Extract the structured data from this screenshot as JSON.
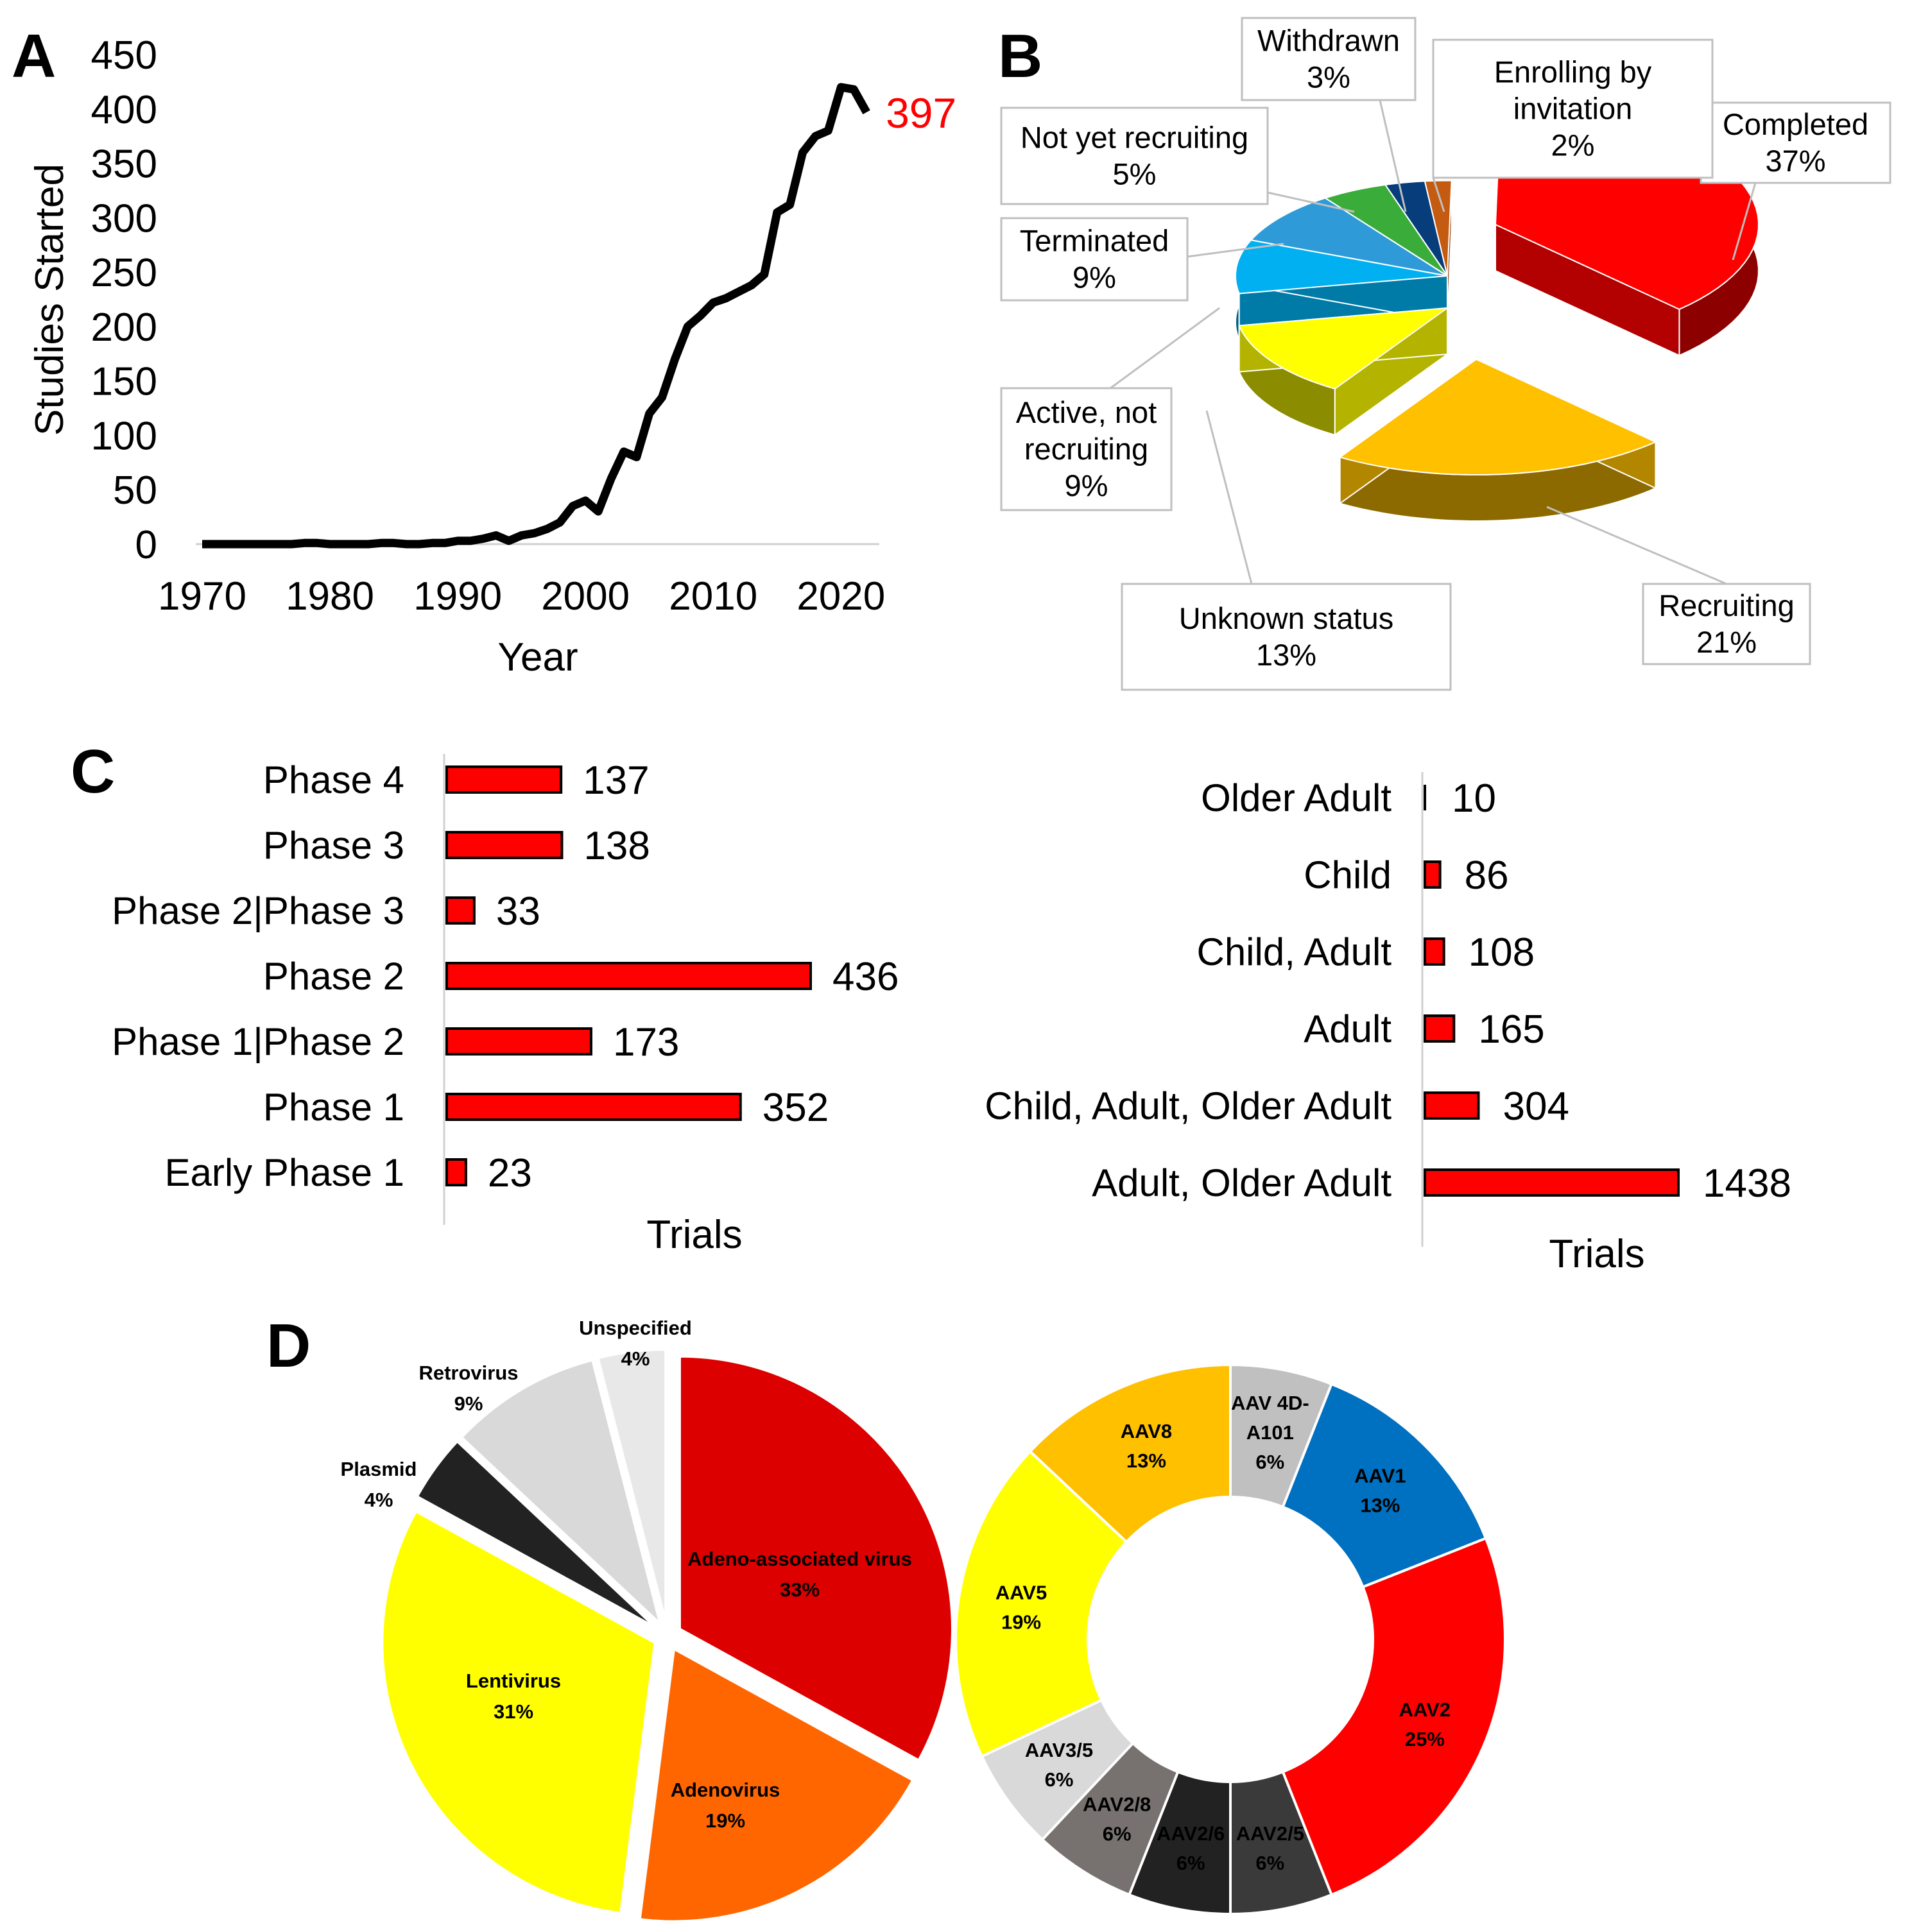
{
  "panels": {
    "A": "A",
    "B": "B",
    "C": "C",
    "D": "D"
  },
  "chart_data": [
    {
      "id": "A",
      "type": "line",
      "xlabel": "Year",
      "ylabel": "Studies Started",
      "xlim": [
        1970,
        2023
      ],
      "ylim": [
        0,
        450
      ],
      "xticks": [
        1970,
        1980,
        1990,
        2000,
        2010,
        2020
      ],
      "yticks": [
        0,
        50,
        100,
        150,
        200,
        250,
        300,
        350,
        400,
        450
      ],
      "annotation": "397",
      "annotation_color": "#ff0000",
      "line_color": "#000000",
      "x": [
        1970,
        1971,
        1972,
        1973,
        1974,
        1975,
        1976,
        1977,
        1978,
        1979,
        1980,
        1981,
        1982,
        1983,
        1984,
        1985,
        1986,
        1987,
        1988,
        1989,
        1990,
        1991,
        1992,
        1993,
        1994,
        1995,
        1996,
        1997,
        1998,
        1999,
        2000,
        2001,
        2002,
        2003,
        2004,
        2005,
        2006,
        2007,
        2008,
        2009,
        2010,
        2011,
        2012,
        2013,
        2014,
        2015,
        2016,
        2017,
        2018,
        2019,
        2020,
        2021,
        2022
      ],
      "y": [
        0,
        0,
        0,
        0,
        0,
        0,
        0,
        0,
        1,
        1,
        0,
        0,
        0,
        0,
        1,
        1,
        0,
        0,
        1,
        1,
        3,
        3,
        5,
        8,
        3,
        8,
        10,
        14,
        20,
        35,
        40,
        30,
        60,
        85,
        80,
        120,
        135,
        170,
        200,
        210,
        222,
        226,
        232,
        238,
        248,
        305,
        312,
        360,
        375,
        380,
        420,
        418,
        397
      ]
    },
    {
      "id": "B",
      "type": "pie",
      "style": "3d-exploded",
      "categories": [
        "Completed",
        "Recruiting",
        "Unknown status",
        "Active, not recruiting",
        "Terminated",
        "Not yet recruiting",
        "Withdrawn",
        "Enrolling by invitation"
      ],
      "labels": [
        "Completed\n37%",
        "Recruiting\n21%",
        "Unknown status\n13%",
        "Active, not\nrecruiting\n9%",
        "Terminated\n9%",
        "Not yet recruiting\n5%",
        "Withdrawn\n3%",
        "Enrolling by\ninvitation\n2%"
      ],
      "values": [
        37,
        21,
        13,
        9,
        9,
        5,
        3,
        2
      ],
      "colors": [
        "#ff0000",
        "#ffc000",
        "#ffff00",
        "#00b0f0",
        "#2e9bd8",
        "#3aac3a",
        "#063d7a",
        "#c55a11"
      ]
    },
    {
      "id": "C1",
      "type": "bar",
      "orientation": "horizontal",
      "xlabel": "Trials",
      "categories": [
        "Phase 4",
        "Phase 3",
        "Phase 2|Phase 3",
        "Phase 2",
        "Phase 1|Phase 2",
        "Phase 1",
        "Early Phase 1"
      ],
      "values": [
        137,
        138,
        33,
        436,
        173,
        352,
        23
      ],
      "bar_color": "#ff0000"
    },
    {
      "id": "C2",
      "type": "bar",
      "orientation": "horizontal",
      "xlabel": "Trials",
      "categories": [
        "Older Adult",
        "Child",
        "Child, Adult",
        "Adult",
        "Child, Adult, Older Adult",
        "Adult, Older Adult"
      ],
      "values": [
        10,
        86,
        108,
        165,
        304,
        1438
      ],
      "bar_color": "#ff0000"
    },
    {
      "id": "D1",
      "type": "pie",
      "categories": [
        "Adeno-associated virus",
        "Adenovirus",
        "Lentivirus",
        "Plasmid",
        "Retrovirus",
        "Unspecified"
      ],
      "labels": [
        "Adeno-associated virus\n33%",
        "Adenovirus\n19%",
        "Lentivirus\n31%",
        "Plasmid\n4%",
        "Retrovirus\n9%",
        "Unspecified\n4%"
      ],
      "values": [
        33,
        19,
        31,
        4,
        9,
        4
      ],
      "colors": [
        "#dd0000",
        "#ff6600",
        "#ffff00",
        "#222222",
        "#d9d9d9",
        "#e8e8e8"
      ]
    },
    {
      "id": "D2",
      "type": "pie",
      "style": "donut",
      "categories": [
        "AAV 4D-A101",
        "AAV1",
        "AAV2",
        "AAV2/5",
        "AAV2/6",
        "AAV2/8",
        "AAV3/5",
        "AAV5",
        "AAV8"
      ],
      "labels": [
        "AAV 4D-\nA101\n6%",
        "AAV1\n13%",
        "AAV2\n25%",
        "AAV2/5\n6%",
        "AAV2/6\n6%",
        "AAV2/8\n6%",
        "AAV3/5\n6%",
        "AAV5\n19%",
        "AAV8\n13%"
      ],
      "values": [
        6,
        13,
        25,
        6,
        6,
        6,
        6,
        19,
        13
      ],
      "colors": [
        "#c0c0c0",
        "#0070c0",
        "#ff0000",
        "#3a3a3a",
        "#222222",
        "#777270",
        "#d9d9d9",
        "#ffff00",
        "#ffc000"
      ]
    }
  ]
}
